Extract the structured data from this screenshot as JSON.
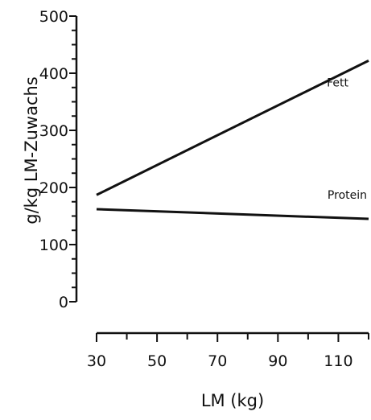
{
  "chart_data": {
    "type": "line",
    "title": "",
    "ylabel": "g/kg LM-Zuwachs",
    "xlabel": "LM (kg)",
    "xlim": [
      30,
      120
    ],
    "ylim": [
      0,
      500
    ],
    "x_ticks": [
      30,
      50,
      70,
      90,
      110
    ],
    "y_ticks": [
      0,
      100,
      200,
      300,
      400,
      500
    ],
    "x_minor_step": 10,
    "y_minor_step": 25,
    "grid": false,
    "legend": "none",
    "series": [
      {
        "name": "Fett",
        "x": [
          30,
          120
        ],
        "y": [
          187,
          422
        ],
        "color": "#111111"
      },
      {
        "name": "Protein",
        "x": [
          30,
          120
        ],
        "y": [
          162,
          145
        ],
        "color": "#111111"
      }
    ]
  }
}
